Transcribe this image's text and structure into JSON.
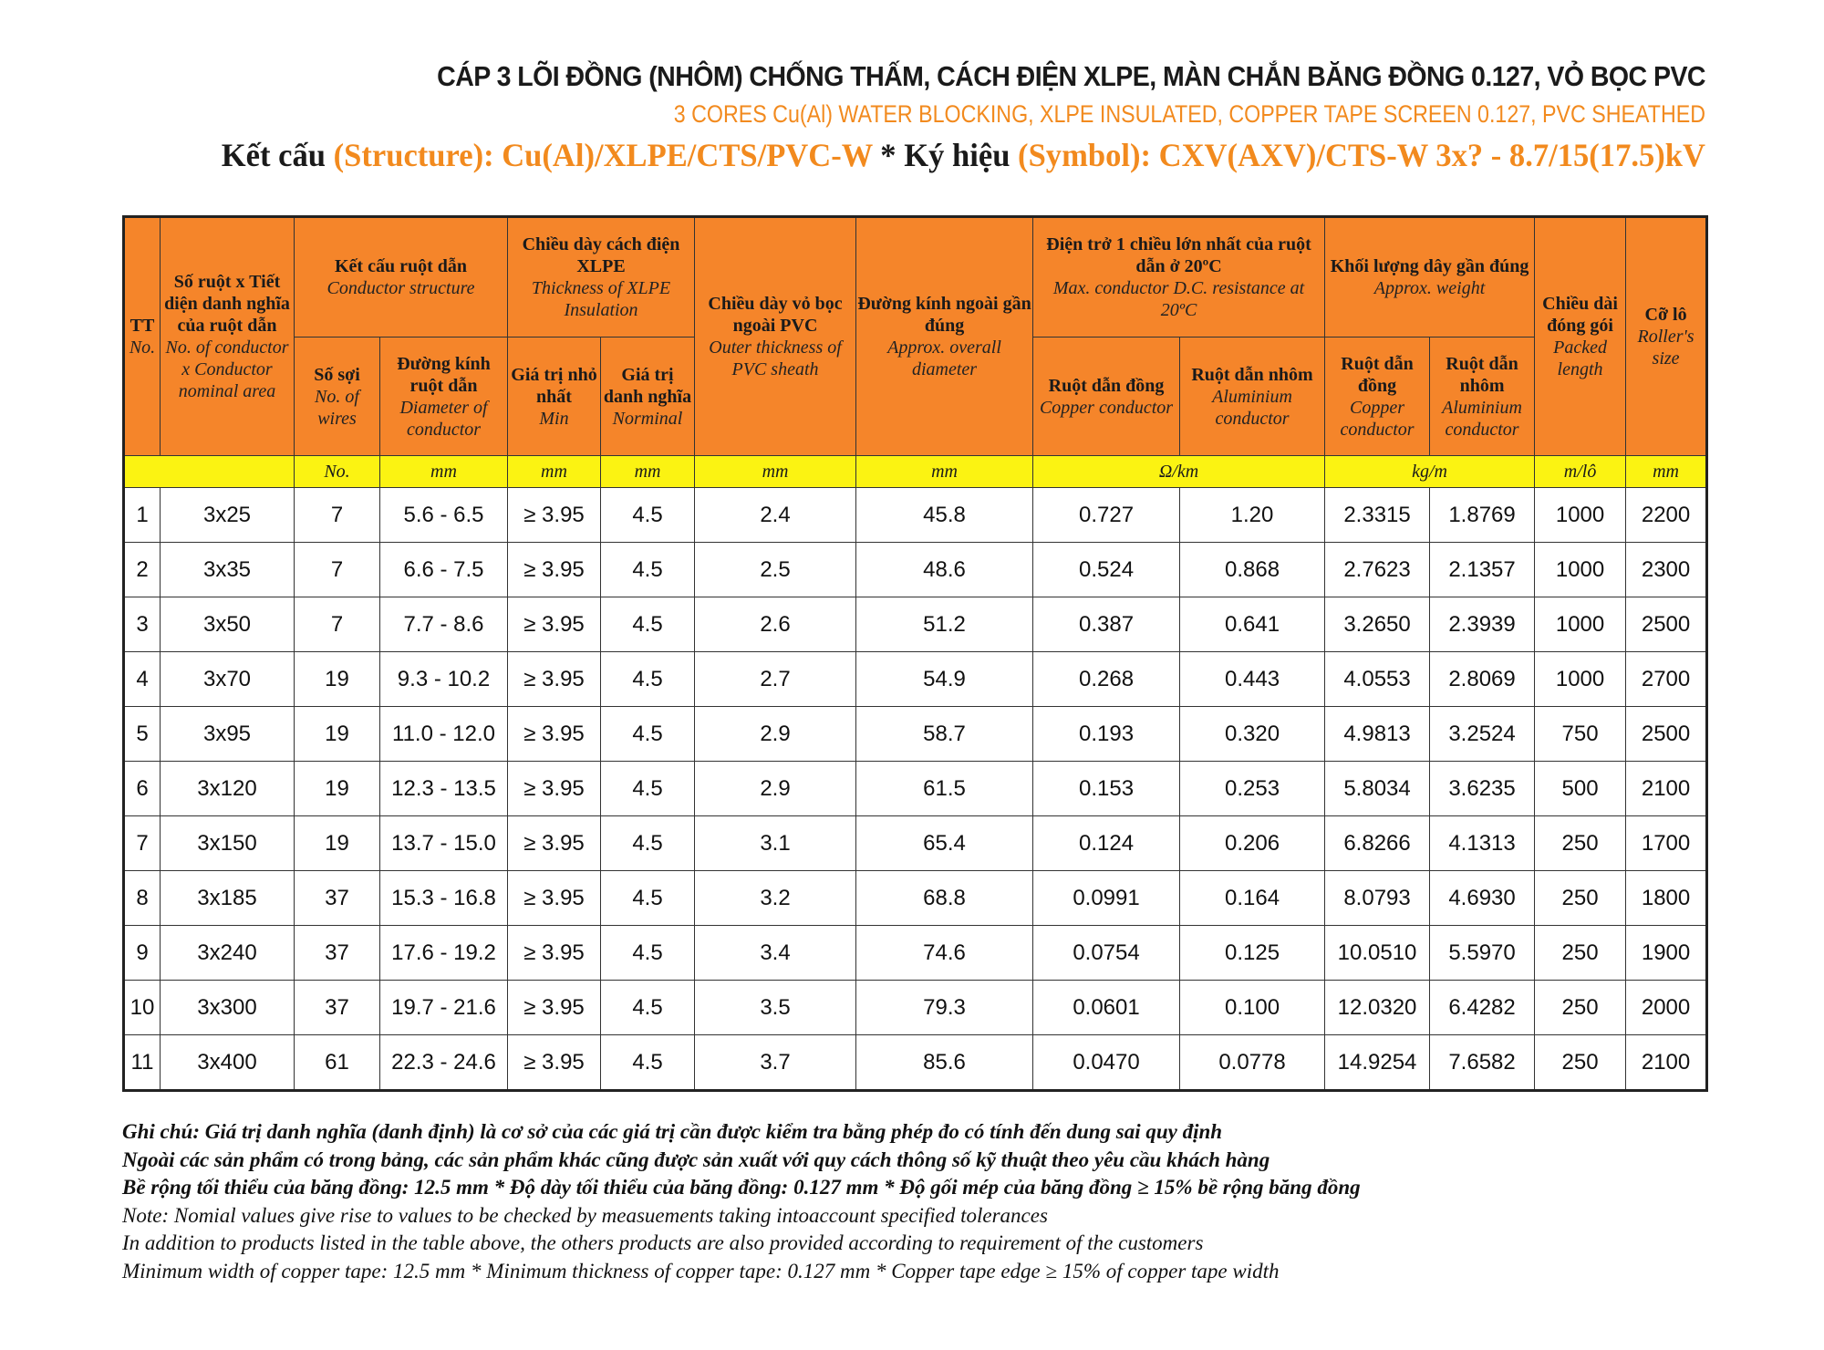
{
  "header": {
    "title_vi": "CÁP 3 LÕI ĐỒNG (NHÔM) CHỐNG THẤM, CÁCH ĐIỆN XLPE, MÀN CHẮN BĂNG ĐỒNG 0.127, VỎ BỌC PVC",
    "title_en": "3 CORES Cu(Al) WATER BLOCKING, XLPE INSULATED, COPPER TAPE SCREEN 0.127,  PVC SHEATHED",
    "structure_label": "Kết cấu",
    "structure_value": "(Structure): Cu(Al)/XLPE/CTS/PVC-W",
    "separator": " * ",
    "symbol_label": "Ký hiệu",
    "symbol_value": "(Symbol): CXV(AXV)/CTS-W 3x? - 8.7/15(17.5)kV"
  },
  "colors": {
    "header_bg": "#f5852a",
    "units_bg": "#fbf312",
    "accent_text": "#f28a1e"
  },
  "table": {
    "headers": {
      "no": {
        "vi": "TT",
        "en": "No."
      },
      "size": {
        "vi": "Số ruột x Tiết diện danh nghĩa của ruột dẫn",
        "en": "No. of conductor x Conductor nominal area"
      },
      "conductor_structure": {
        "vi": "Kết cấu ruột dẫn",
        "en": "Conductor structure"
      },
      "wires": {
        "vi": "Số sợi",
        "en": "No. of wires"
      },
      "conductor_diameter": {
        "vi": "Đường kính ruột dẫn",
        "en": "Diameter of conductor"
      },
      "xlpe": {
        "vi": "Chiều dày cách điện XLPE",
        "en": "Thickness of XLPE Insulation"
      },
      "xlpe_min": {
        "vi": "Giá trị nhỏ nhất",
        "en": "Min"
      },
      "xlpe_nom": {
        "vi": "Giá trị danh nghĩa",
        "en": "Norminal"
      },
      "pvc": {
        "vi": "Chiều dày vỏ bọc ngoài PVC",
        "en": "Outer thickness of PVC sheath"
      },
      "overall_diameter": {
        "vi": "Đường kính ngoài gần đúng",
        "en": "Approx. overall diameter"
      },
      "resistance": {
        "vi": "Điện trở 1 chiều lớn nhất của ruột dẫn ở 20ºC",
        "en": "Max. conductor D.C. resistance at 20ºC"
      },
      "res_cu": {
        "vi": "Ruột dẫn đồng",
        "en": "Copper conductor"
      },
      "res_al": {
        "vi": "Ruột dẫn nhôm",
        "en": "Aluminium conductor"
      },
      "weight": {
        "vi": "Khối lượng dây gần đúng",
        "en": "Approx. weight"
      },
      "wt_cu": {
        "vi": "Ruột dẫn đồng",
        "en": "Copper conductor"
      },
      "wt_al": {
        "vi": "Ruột dẫn nhôm",
        "en": "Aluminium conductor"
      },
      "packed": {
        "vi": "Chiều dài đóng gói",
        "en": "Packed length"
      },
      "roller": {
        "vi": "Cỡ lô",
        "en": "Roller's size"
      }
    },
    "units": [
      "No.",
      "mm",
      "mm",
      "mm",
      "mm",
      "mm",
      "Ω/km",
      "kg/m",
      "m/lô",
      "mm"
    ],
    "rows": [
      [
        "1",
        "3x25",
        "7",
        "5.6 - 6.5",
        "≥ 3.95",
        "4.5",
        "2.4",
        "45.8",
        "0.727",
        "1.20",
        "2.3315",
        "1.8769",
        "1000",
        "2200"
      ],
      [
        "2",
        "3x35",
        "7",
        "6.6 - 7.5",
        "≥ 3.95",
        "4.5",
        "2.5",
        "48.6",
        "0.524",
        "0.868",
        "2.7623",
        "2.1357",
        "1000",
        "2300"
      ],
      [
        "3",
        "3x50",
        "7",
        "7.7 - 8.6",
        "≥ 3.95",
        "4.5",
        "2.6",
        "51.2",
        "0.387",
        "0.641",
        "3.2650",
        "2.3939",
        "1000",
        "2500"
      ],
      [
        "4",
        "3x70",
        "19",
        "9.3 - 10.2",
        "≥ 3.95",
        "4.5",
        "2.7",
        "54.9",
        "0.268",
        "0.443",
        "4.0553",
        "2.8069",
        "1000",
        "2700"
      ],
      [
        "5",
        "3x95",
        "19",
        "11.0 - 12.0",
        "≥ 3.95",
        "4.5",
        "2.9",
        "58.7",
        "0.193",
        "0.320",
        "4.9813",
        "3.2524",
        "750",
        "2500"
      ],
      [
        "6",
        "3x120",
        "19",
        "12.3 - 13.5",
        "≥ 3.95",
        "4.5",
        "2.9",
        "61.5",
        "0.153",
        "0.253",
        "5.8034",
        "3.6235",
        "500",
        "2100"
      ],
      [
        "7",
        "3x150",
        "19",
        "13.7 - 15.0",
        "≥ 3.95",
        "4.5",
        "3.1",
        "65.4",
        "0.124",
        "0.206",
        "6.8266",
        "4.1313",
        "250",
        "1700"
      ],
      [
        "8",
        "3x185",
        "37",
        "15.3 - 16.8",
        "≥ 3.95",
        "4.5",
        "3.2",
        "68.8",
        "0.0991",
        "0.164",
        "8.0793",
        "4.6930",
        "250",
        "1800"
      ],
      [
        "9",
        "3x240",
        "37",
        "17.6 - 19.2",
        "≥ 3.95",
        "4.5",
        "3.4",
        "74.6",
        "0.0754",
        "0.125",
        "10.0510",
        "5.5970",
        "250",
        "1900"
      ],
      [
        "10",
        "3x300",
        "37",
        "19.7 - 21.6",
        "≥ 3.95",
        "4.5",
        "3.5",
        "79.3",
        "0.0601",
        "0.100",
        "12.0320",
        "6.4282",
        "250",
        "2000"
      ],
      [
        "11",
        "3x400",
        "61",
        "22.3 - 24.6",
        "≥ 3.95",
        "4.5",
        "3.7",
        "85.6",
        "0.0470",
        "0.0778",
        "14.9254",
        "7.6582",
        "250",
        "2100"
      ]
    ]
  },
  "notes": {
    "vi": [
      "Ghi chú: Giá trị danh nghĩa (danh định) là cơ sở của các giá trị cần được kiểm tra bằng phép đo có tính đến dung sai quy định",
      "Ngoài các sản phẩm có trong bảng, các sản phẩm khác cũng được sản xuất với quy cách thông số kỹ thuật theo yêu cầu khách hàng",
      "Bề rộng tối thiểu của băng đồng: 12.5 mm * Độ dày tối thiểu của băng đồng: 0.127 mm * Độ gối mép của băng đồng ≥ 15% bề rộng băng đồng"
    ],
    "en": [
      "Note: Nomial values give rise to values to be checked by measuements taking intoaccount specified tolerances",
      "In addition to products listed in the table above, the others products are also provided according to requirement of the customers",
      "Minimum width of copper tape: 12.5 mm * Minimum thickness of copper tape: 0.127 mm * Copper tape edge ≥ 15% of copper tape width"
    ]
  }
}
